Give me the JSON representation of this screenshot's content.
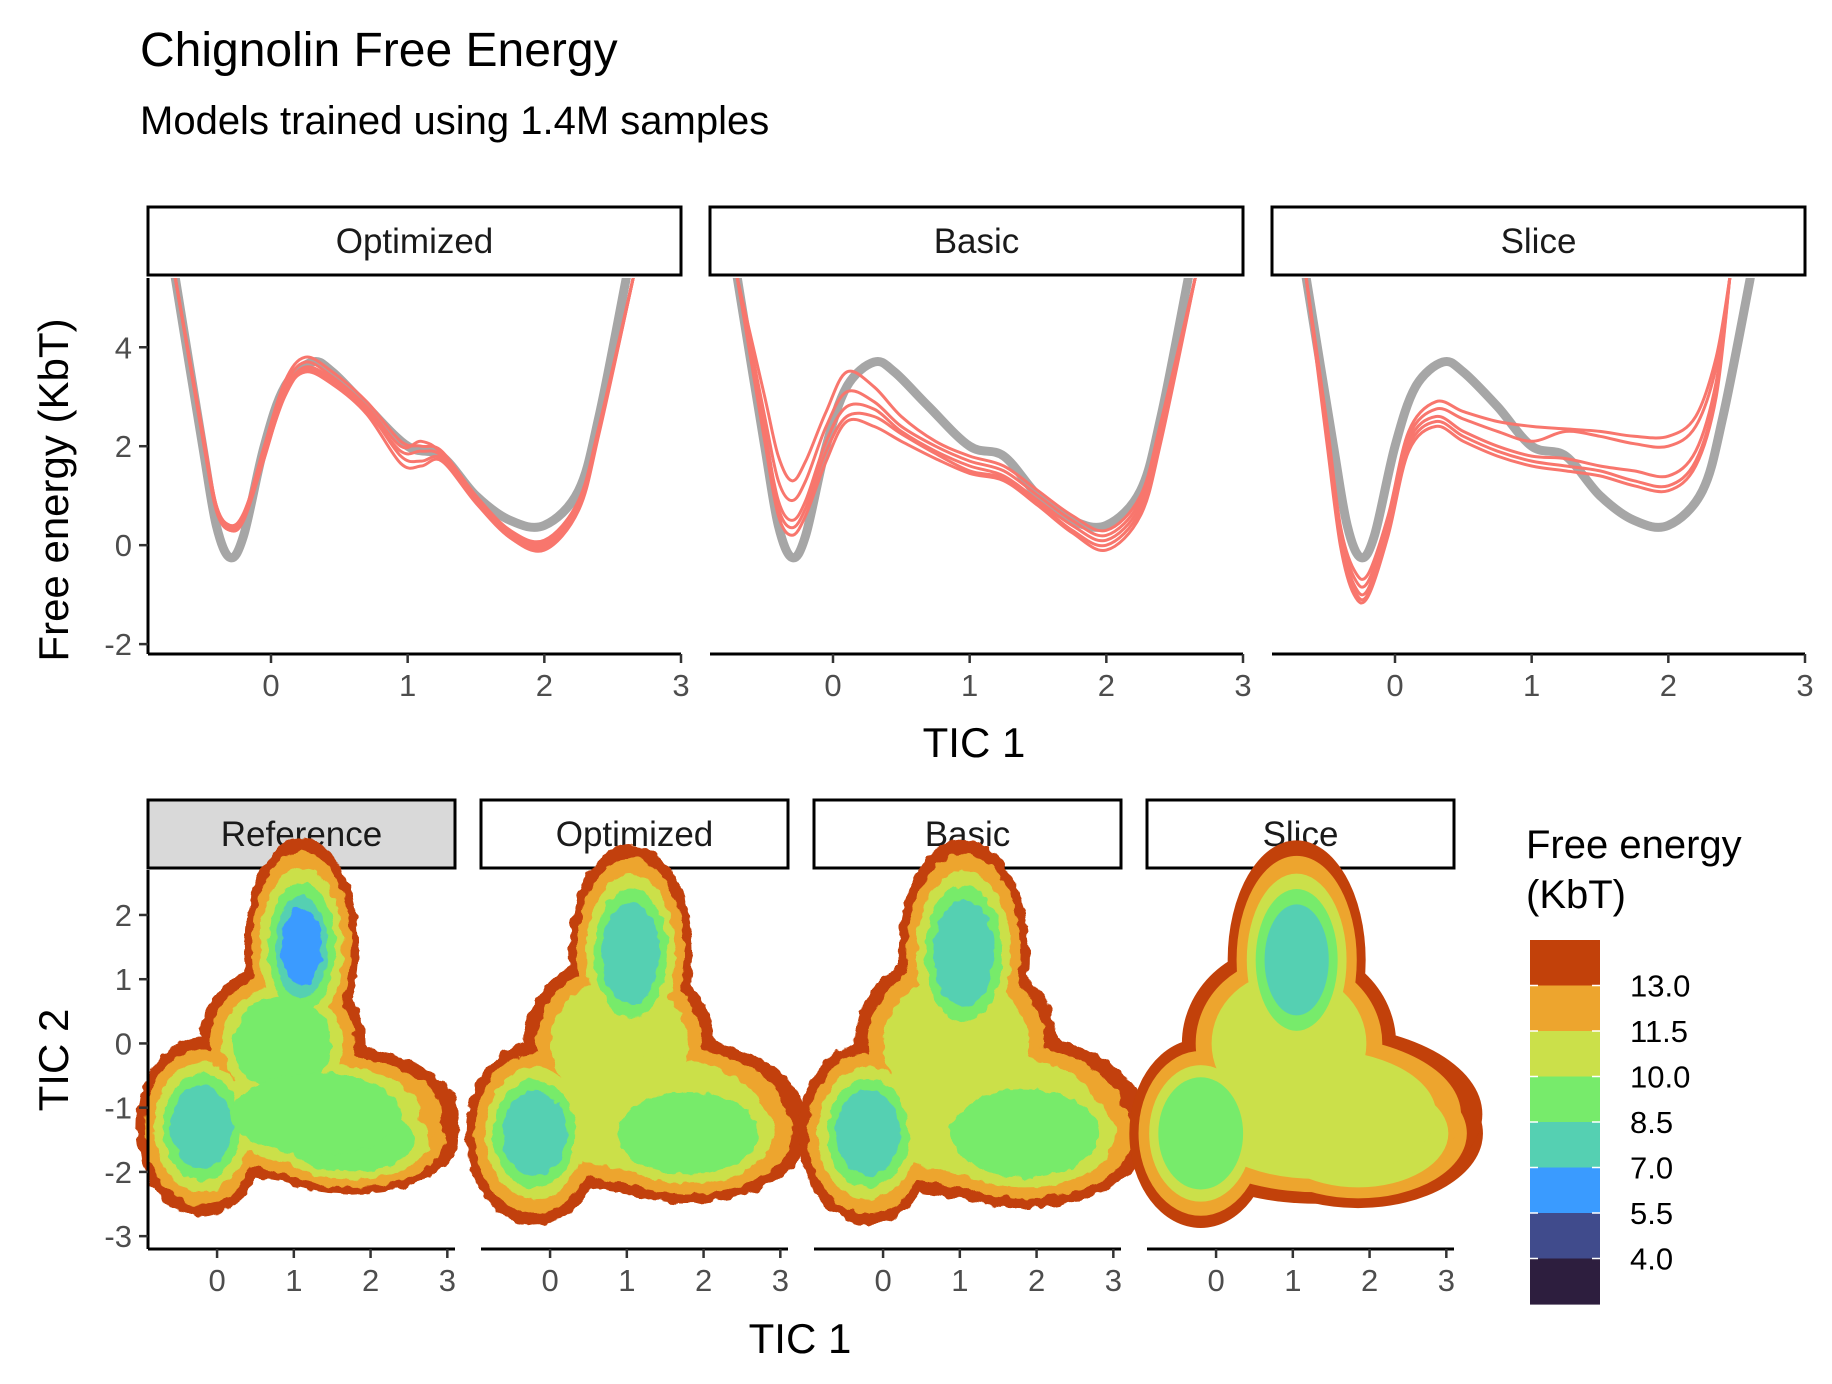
{
  "chart_data": [
    {
      "type": "line",
      "title": "Chignolin Free Energy",
      "subtitle": "Models trained using 1.4M samples",
      "xlabel": "TIC 1",
      "ylabel": "Free energy (KbT)",
      "xlim": [
        -0.9,
        3.0
      ],
      "ylim": [
        -2.2,
        5.4
      ],
      "x_ticks": [
        0,
        1,
        2,
        3
      ],
      "y_ticks": [
        -2,
        0,
        2,
        4
      ],
      "reference_color": "#a6a6a6",
      "model_color": "#f8766d",
      "panels": [
        {
          "label": "Optimized",
          "reference": {
            "x": [
              -0.7,
              -0.5,
              -0.4,
              -0.3,
              -0.2,
              -0.05,
              0.1,
              0.3,
              0.45,
              0.7,
              1.0,
              1.25,
              1.5,
              1.75,
              2.0,
              2.25,
              2.4,
              2.6
            ],
            "y": [
              5.4,
              2.0,
              0.4,
              -0.25,
              0.2,
              2.0,
              3.2,
              3.7,
              3.5,
              2.8,
              2.0,
              1.8,
              1.0,
              0.5,
              0.4,
              1.1,
              2.6,
              5.4
            ]
          },
          "models": [
            {
              "x": [
                -0.7,
                -0.5,
                -0.4,
                -0.3,
                -0.2,
                -0.05,
                0.1,
                0.25,
                0.45,
                0.7,
                0.95,
                1.1,
                1.25,
                1.5,
                1.75,
                2.0,
                2.25,
                2.4,
                2.65
              ],
              "y": [
                5.4,
                2.3,
                0.8,
                0.4,
                0.6,
                2.0,
                3.3,
                3.8,
                3.5,
                2.9,
                2.1,
                2.0,
                1.9,
                1.0,
                0.3,
                0.1,
                0.9,
                2.4,
                5.4
              ]
            },
            {
              "x": [
                -0.7,
                -0.5,
                -0.4,
                -0.3,
                -0.2,
                -0.05,
                0.1,
                0.25,
                0.45,
                0.7,
                0.95,
                1.1,
                1.25,
                1.5,
                1.75,
                2.0,
                2.25,
                2.4,
                2.65
              ],
              "y": [
                5.4,
                2.2,
                0.7,
                0.3,
                0.55,
                1.9,
                3.2,
                3.7,
                3.4,
                2.8,
                2.0,
                2.1,
                1.85,
                0.95,
                0.2,
                0.0,
                0.8,
                2.3,
                5.4
              ]
            },
            {
              "x": [
                -0.7,
                -0.5,
                -0.4,
                -0.3,
                -0.2,
                -0.05,
                0.1,
                0.25,
                0.45,
                0.7,
                0.95,
                1.1,
                1.25,
                1.5,
                1.75,
                2.0,
                2.25,
                2.4,
                2.65
              ],
              "y": [
                5.4,
                2.2,
                0.75,
                0.35,
                0.6,
                1.8,
                3.0,
                3.55,
                3.3,
                2.7,
                1.9,
                1.9,
                1.8,
                0.9,
                0.15,
                -0.05,
                0.75,
                2.3,
                5.4
              ]
            },
            {
              "x": [
                -0.7,
                -0.5,
                -0.4,
                -0.3,
                -0.2,
                -0.05,
                0.1,
                0.25,
                0.45,
                0.7,
                0.95,
                1.1,
                1.25,
                1.5,
                1.75,
                2.0,
                2.25,
                2.4,
                2.65
              ],
              "y": [
                5.4,
                2.25,
                0.8,
                0.4,
                0.65,
                1.85,
                3.1,
                3.6,
                3.35,
                2.75,
                1.8,
                1.7,
                1.75,
                0.95,
                0.25,
                0.05,
                0.85,
                2.35,
                5.4
              ]
            },
            {
              "x": [
                -0.7,
                -0.5,
                -0.4,
                -0.3,
                -0.2,
                -0.05,
                0.1,
                0.25,
                0.45,
                0.7,
                0.95,
                1.1,
                1.25,
                1.5,
                1.75,
                2.0,
                2.25,
                2.4,
                2.65
              ],
              "y": [
                5.4,
                2.15,
                0.7,
                0.3,
                0.5,
                1.75,
                3.05,
                3.5,
                3.25,
                2.65,
                1.65,
                1.6,
                1.7,
                0.85,
                0.15,
                -0.1,
                0.7,
                2.25,
                5.4
              ]
            }
          ]
        },
        {
          "label": "Basic",
          "reference": {
            "x": [
              -0.7,
              -0.5,
              -0.4,
              -0.3,
              -0.2,
              -0.05,
              0.1,
              0.3,
              0.45,
              0.7,
              1.0,
              1.25,
              1.5,
              1.75,
              2.0,
              2.25,
              2.4,
              2.6
            ],
            "y": [
              5.4,
              2.0,
              0.4,
              -0.25,
              0.2,
              2.0,
              3.2,
              3.7,
              3.5,
              2.8,
              2.0,
              1.8,
              1.0,
              0.5,
              0.4,
              1.1,
              2.6,
              5.4
            ]
          },
          "models": [
            {
              "x": [
                -0.7,
                -0.5,
                -0.4,
                -0.3,
                -0.2,
                -0.05,
                0.1,
                0.3,
                0.5,
                0.75,
                1.0,
                1.25,
                1.5,
                1.75,
                2.0,
                2.25,
                2.4,
                2.65
              ],
              "y": [
                5.4,
                3.0,
                1.8,
                1.3,
                1.7,
                2.7,
                3.5,
                3.2,
                2.6,
                2.1,
                1.8,
                1.6,
                1.1,
                0.6,
                0.3,
                1.0,
                2.5,
                5.4
              ]
            },
            {
              "x": [
                -0.7,
                -0.5,
                -0.4,
                -0.3,
                -0.2,
                -0.05,
                0.1,
                0.3,
                0.5,
                0.75,
                1.0,
                1.25,
                1.5,
                1.75,
                2.0,
                2.25,
                2.4,
                2.65
              ],
              "y": [
                5.4,
                2.6,
                1.3,
                0.9,
                1.3,
                2.4,
                3.1,
                2.9,
                2.4,
                2.0,
                1.7,
                1.5,
                1.0,
                0.5,
                0.2,
                0.9,
                2.4,
                5.4
              ]
            },
            {
              "x": [
                -0.7,
                -0.5,
                -0.4,
                -0.3,
                -0.2,
                -0.05,
                0.1,
                0.3,
                0.5,
                0.75,
                1.0,
                1.25,
                1.5,
                1.75,
                2.0,
                2.25,
                2.4,
                2.65
              ],
              "y": [
                5.4,
                2.3,
                0.9,
                0.5,
                0.9,
                2.1,
                2.8,
                2.75,
                2.3,
                1.9,
                1.6,
                1.4,
                0.9,
                0.4,
                0.1,
                0.8,
                2.3,
                5.4
              ]
            },
            {
              "x": [
                -0.7,
                -0.5,
                -0.4,
                -0.3,
                -0.2,
                -0.05,
                0.1,
                0.3,
                0.5,
                0.75,
                1.0,
                1.25,
                1.5,
                1.75,
                2.0,
                2.25,
                2.4,
                2.65
              ],
              "y": [
                5.4,
                2.2,
                0.75,
                0.35,
                0.75,
                1.9,
                2.6,
                2.6,
                2.25,
                1.85,
                1.5,
                1.35,
                0.85,
                0.3,
                0.0,
                0.7,
                2.2,
                5.4
              ]
            },
            {
              "x": [
                -0.7,
                -0.5,
                -0.4,
                -0.3,
                -0.2,
                -0.05,
                0.1,
                0.3,
                0.5,
                0.75,
                1.0,
                1.25,
                1.5,
                1.75,
                2.0,
                2.25,
                2.4,
                2.65
              ],
              "y": [
                5.4,
                2.1,
                0.6,
                0.2,
                0.6,
                1.7,
                2.5,
                2.4,
                2.1,
                1.75,
                1.45,
                1.3,
                0.8,
                0.25,
                -0.1,
                0.6,
                2.1,
                5.4
              ]
            }
          ]
        },
        {
          "label": "Slice",
          "reference": {
            "x": [
              -0.65,
              -0.45,
              -0.35,
              -0.25,
              -0.15,
              0.0,
              0.15,
              0.35,
              0.5,
              0.75,
              1.0,
              1.25,
              1.5,
              1.75,
              2.0,
              2.25,
              2.4,
              2.6
            ],
            "y": [
              5.4,
              2.0,
              0.4,
              -0.25,
              0.2,
              2.0,
              3.2,
              3.7,
              3.5,
              2.8,
              2.0,
              1.8,
              1.0,
              0.5,
              0.4,
              1.1,
              2.6,
              5.4
            ]
          },
          "models": [
            {
              "x": [
                -0.65,
                -0.5,
                -0.4,
                -0.3,
                -0.2,
                -0.05,
                0.1,
                0.3,
                0.5,
                0.75,
                1.0,
                1.25,
                1.5,
                1.75,
                2.0,
                2.2,
                2.35,
                2.45
              ],
              "y": [
                5.4,
                2.5,
                0.4,
                -0.5,
                -0.6,
                0.6,
                2.3,
                2.9,
                2.7,
                2.5,
                2.4,
                2.35,
                2.3,
                2.2,
                2.2,
                2.6,
                3.8,
                5.4
              ]
            },
            {
              "x": [
                -0.65,
                -0.5,
                -0.4,
                -0.3,
                -0.2,
                -0.05,
                0.1,
                0.3,
                0.5,
                0.75,
                1.0,
                1.25,
                1.5,
                1.75,
                2.0,
                2.2,
                2.35,
                2.45
              ],
              "y": [
                5.4,
                2.4,
                0.3,
                -0.65,
                -0.75,
                0.5,
                2.2,
                2.75,
                2.55,
                2.3,
                2.1,
                2.3,
                2.2,
                2.05,
                2.0,
                2.4,
                3.6,
                5.4
              ]
            },
            {
              "x": [
                -0.65,
                -0.5,
                -0.4,
                -0.3,
                -0.2,
                -0.05,
                0.1,
                0.3,
                0.5,
                0.75,
                1.0,
                1.25,
                1.5,
                1.75,
                2.0,
                2.2,
                2.35,
                2.45
              ],
              "y": [
                5.4,
                2.3,
                0.2,
                -0.8,
                -0.9,
                0.4,
                2.1,
                2.6,
                2.3,
                2.0,
                1.8,
                1.75,
                1.6,
                1.5,
                1.4,
                1.9,
                3.3,
                5.4
              ]
            },
            {
              "x": [
                -0.65,
                -0.5,
                -0.4,
                -0.3,
                -0.2,
                -0.05,
                0.1,
                0.3,
                0.5,
                0.75,
                1.0,
                1.25,
                1.5,
                1.75,
                2.0,
                2.2,
                2.35,
                2.45
              ],
              "y": [
                5.4,
                2.2,
                0.1,
                -0.9,
                -1.0,
                0.3,
                2.0,
                2.5,
                2.2,
                1.9,
                1.7,
                1.6,
                1.5,
                1.3,
                1.2,
                1.7,
                3.1,
                5.4
              ]
            },
            {
              "x": [
                -0.65,
                -0.5,
                -0.4,
                -0.3,
                -0.2,
                -0.05,
                0.1,
                0.3,
                0.5,
                0.75,
                1.0,
                1.25,
                1.5,
                1.75,
                2.0,
                2.2,
                2.35,
                2.45
              ],
              "y": [
                5.4,
                2.1,
                0.0,
                -1.0,
                -1.05,
                0.2,
                1.9,
                2.4,
                2.1,
                1.8,
                1.6,
                1.5,
                1.4,
                1.2,
                1.1,
                1.6,
                3.0,
                5.4
              ]
            }
          ]
        }
      ]
    },
    {
      "type": "heatmap",
      "xlabel": "TIC 1",
      "ylabel": "TIC 2",
      "xlim": [
        -0.9,
        3.1
      ],
      "ylim": [
        -3.2,
        2.7
      ],
      "x_ticks": [
        0,
        1,
        2,
        3
      ],
      "y_ticks": [
        -3,
        -2,
        -1,
        0,
        1,
        2
      ],
      "legend": {
        "title_line1": "Free energy",
        "title_line2": "(KbT)",
        "breaks": [
          "13.0",
          "11.5",
          "10.0",
          "8.5",
          "7.0",
          "5.5",
          "4.0"
        ],
        "colors": [
          "#2d1e3e",
          "#404b8c",
          "#3a9bff",
          "#55d0b2",
          "#77eb6b",
          "#cbe04a",
          "#eda52e",
          "#c2410a"
        ]
      },
      "panels": [
        {
          "label": "Reference"
        },
        {
          "label": "Optimized"
        },
        {
          "label": "Basic"
        },
        {
          "label": "Slice"
        }
      ]
    }
  ]
}
